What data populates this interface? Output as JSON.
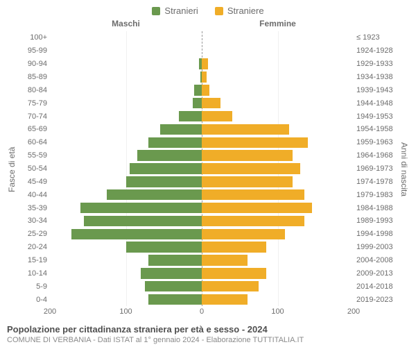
{
  "legend": {
    "male": {
      "label": "Stranieri",
      "color": "#6a994e"
    },
    "female": {
      "label": "Straniere",
      "color": "#f0ad28"
    }
  },
  "columns": {
    "male": "Maschi",
    "female": "Femmine"
  },
  "axes": {
    "left_title": "Fasce di età",
    "right_title": "Anni di nascita"
  },
  "grid_color": "#f0f0f0",
  "center_line_color": "#999999",
  "background_color": "#ffffff",
  "label_color": "#6c6c6c",
  "label_fontsize": 11,
  "x": {
    "max": 200,
    "ticks": [
      200,
      100,
      0,
      100,
      200
    ]
  },
  "rows": [
    {
      "age": "100+",
      "birth": "≤ 1923",
      "m": 0,
      "f": 0
    },
    {
      "age": "95-99",
      "birth": "1924-1928",
      "m": 0,
      "f": 0
    },
    {
      "age": "90-94",
      "birth": "1929-1933",
      "m": 4,
      "f": 8
    },
    {
      "age": "85-89",
      "birth": "1934-1938",
      "m": 2,
      "f": 6
    },
    {
      "age": "80-84",
      "birth": "1939-1943",
      "m": 10,
      "f": 10
    },
    {
      "age": "75-79",
      "birth": "1944-1948",
      "m": 12,
      "f": 25
    },
    {
      "age": "70-74",
      "birth": "1949-1953",
      "m": 30,
      "f": 40
    },
    {
      "age": "65-69",
      "birth": "1954-1958",
      "m": 55,
      "f": 115
    },
    {
      "age": "60-64",
      "birth": "1959-1963",
      "m": 70,
      "f": 140
    },
    {
      "age": "55-59",
      "birth": "1964-1968",
      "m": 85,
      "f": 120
    },
    {
      "age": "50-54",
      "birth": "1969-1973",
      "m": 95,
      "f": 130
    },
    {
      "age": "45-49",
      "birth": "1974-1978",
      "m": 100,
      "f": 120
    },
    {
      "age": "40-44",
      "birth": "1979-1983",
      "m": 125,
      "f": 135
    },
    {
      "age": "35-39",
      "birth": "1984-1988",
      "m": 160,
      "f": 145
    },
    {
      "age": "30-34",
      "birth": "1989-1993",
      "m": 155,
      "f": 135
    },
    {
      "age": "25-29",
      "birth": "1994-1998",
      "m": 172,
      "f": 110
    },
    {
      "age": "20-24",
      "birth": "1999-2003",
      "m": 100,
      "f": 85
    },
    {
      "age": "15-19",
      "birth": "2004-2008",
      "m": 70,
      "f": 60
    },
    {
      "age": "10-14",
      "birth": "2009-2013",
      "m": 80,
      "f": 85
    },
    {
      "age": "5-9",
      "birth": "2014-2018",
      "m": 75,
      "f": 75
    },
    {
      "age": "0-4",
      "birth": "2019-2023",
      "m": 70,
      "f": 60
    }
  ],
  "caption": {
    "title": "Popolazione per cittadinanza straniera per età e sesso - 2024",
    "subtitle": "COMUNE DI VERBANIA - Dati ISTAT al 1° gennaio 2024 - Elaborazione TUTTITALIA.IT"
  }
}
